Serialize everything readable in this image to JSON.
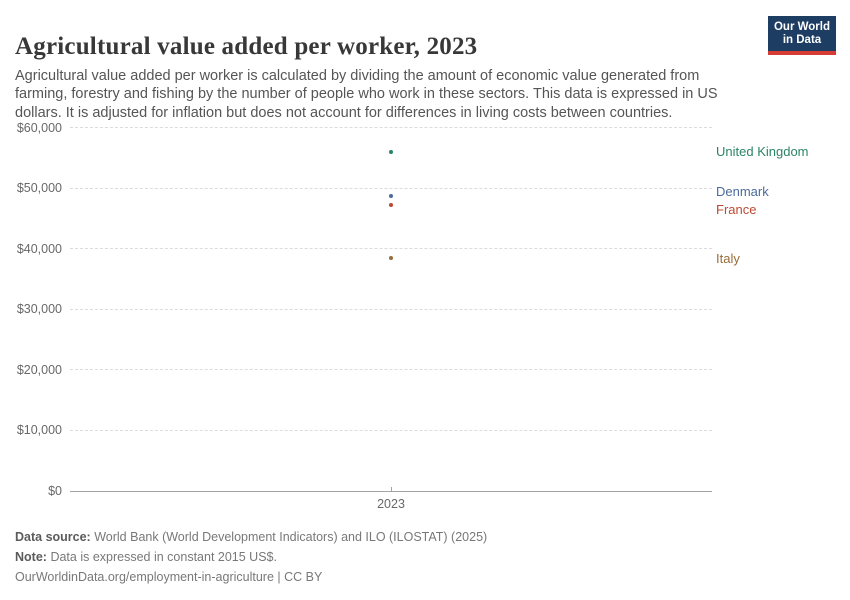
{
  "header": {
    "title": "Agricultural value added per worker, 2023",
    "subtitle": "Agricultural value added per worker is calculated by dividing the amount of economic value generated from farming, forestry and fishing by the number of people who work in these sectors. This data is expressed in US dollars. It is adjusted for inflation but does not account for differences in living costs between countries.",
    "logo": {
      "line1": "Our World",
      "line2": "in Data",
      "bg_color": "#1d3d63",
      "accent_color": "#d73c34"
    }
  },
  "chart_data": {
    "type": "scatter",
    "title": "Agricultural value added per worker, 2023",
    "x_categories": [
      "2023"
    ],
    "series": [
      {
        "name": "United Kingdom",
        "x": 2023,
        "value": 56000,
        "color": "#2C8465"
      },
      {
        "name": "Denmark",
        "x": 2023,
        "value": 48650,
        "color": "#4C6A9C"
      },
      {
        "name": "France",
        "x": 2023,
        "value": 47250,
        "color": "#BC4A31"
      },
      {
        "name": "Italy",
        "x": 2023,
        "value": 38400,
        "color": "#996D39"
      }
    ],
    "ylim": [
      0,
      60000
    ],
    "yticks": [
      {
        "value": 0,
        "label": "$0"
      },
      {
        "value": 10000,
        "label": "$10,000"
      },
      {
        "value": 20000,
        "label": "$20,000"
      },
      {
        "value": 30000,
        "label": "$30,000"
      },
      {
        "value": 40000,
        "label": "$40,000"
      },
      {
        "value": 50000,
        "label": "$50,000"
      },
      {
        "value": 60000,
        "label": "$60,000"
      }
    ],
    "xlabel": "",
    "ylabel": "",
    "grid": "horizontal-dashed",
    "legend_position": "right-entity-labels",
    "unit": "US$ (constant 2015)"
  },
  "footer": {
    "data_source_label": "Data source:",
    "data_source_value": "World Bank (World Development Indicators) and ILO (ILOSTAT) (2025)",
    "note_label": "Note:",
    "note_value": "Data is expressed in constant 2015 US$.",
    "url": "OurWorldinData.org/employment-in-agriculture",
    "separator": "|",
    "license": "CC BY"
  }
}
